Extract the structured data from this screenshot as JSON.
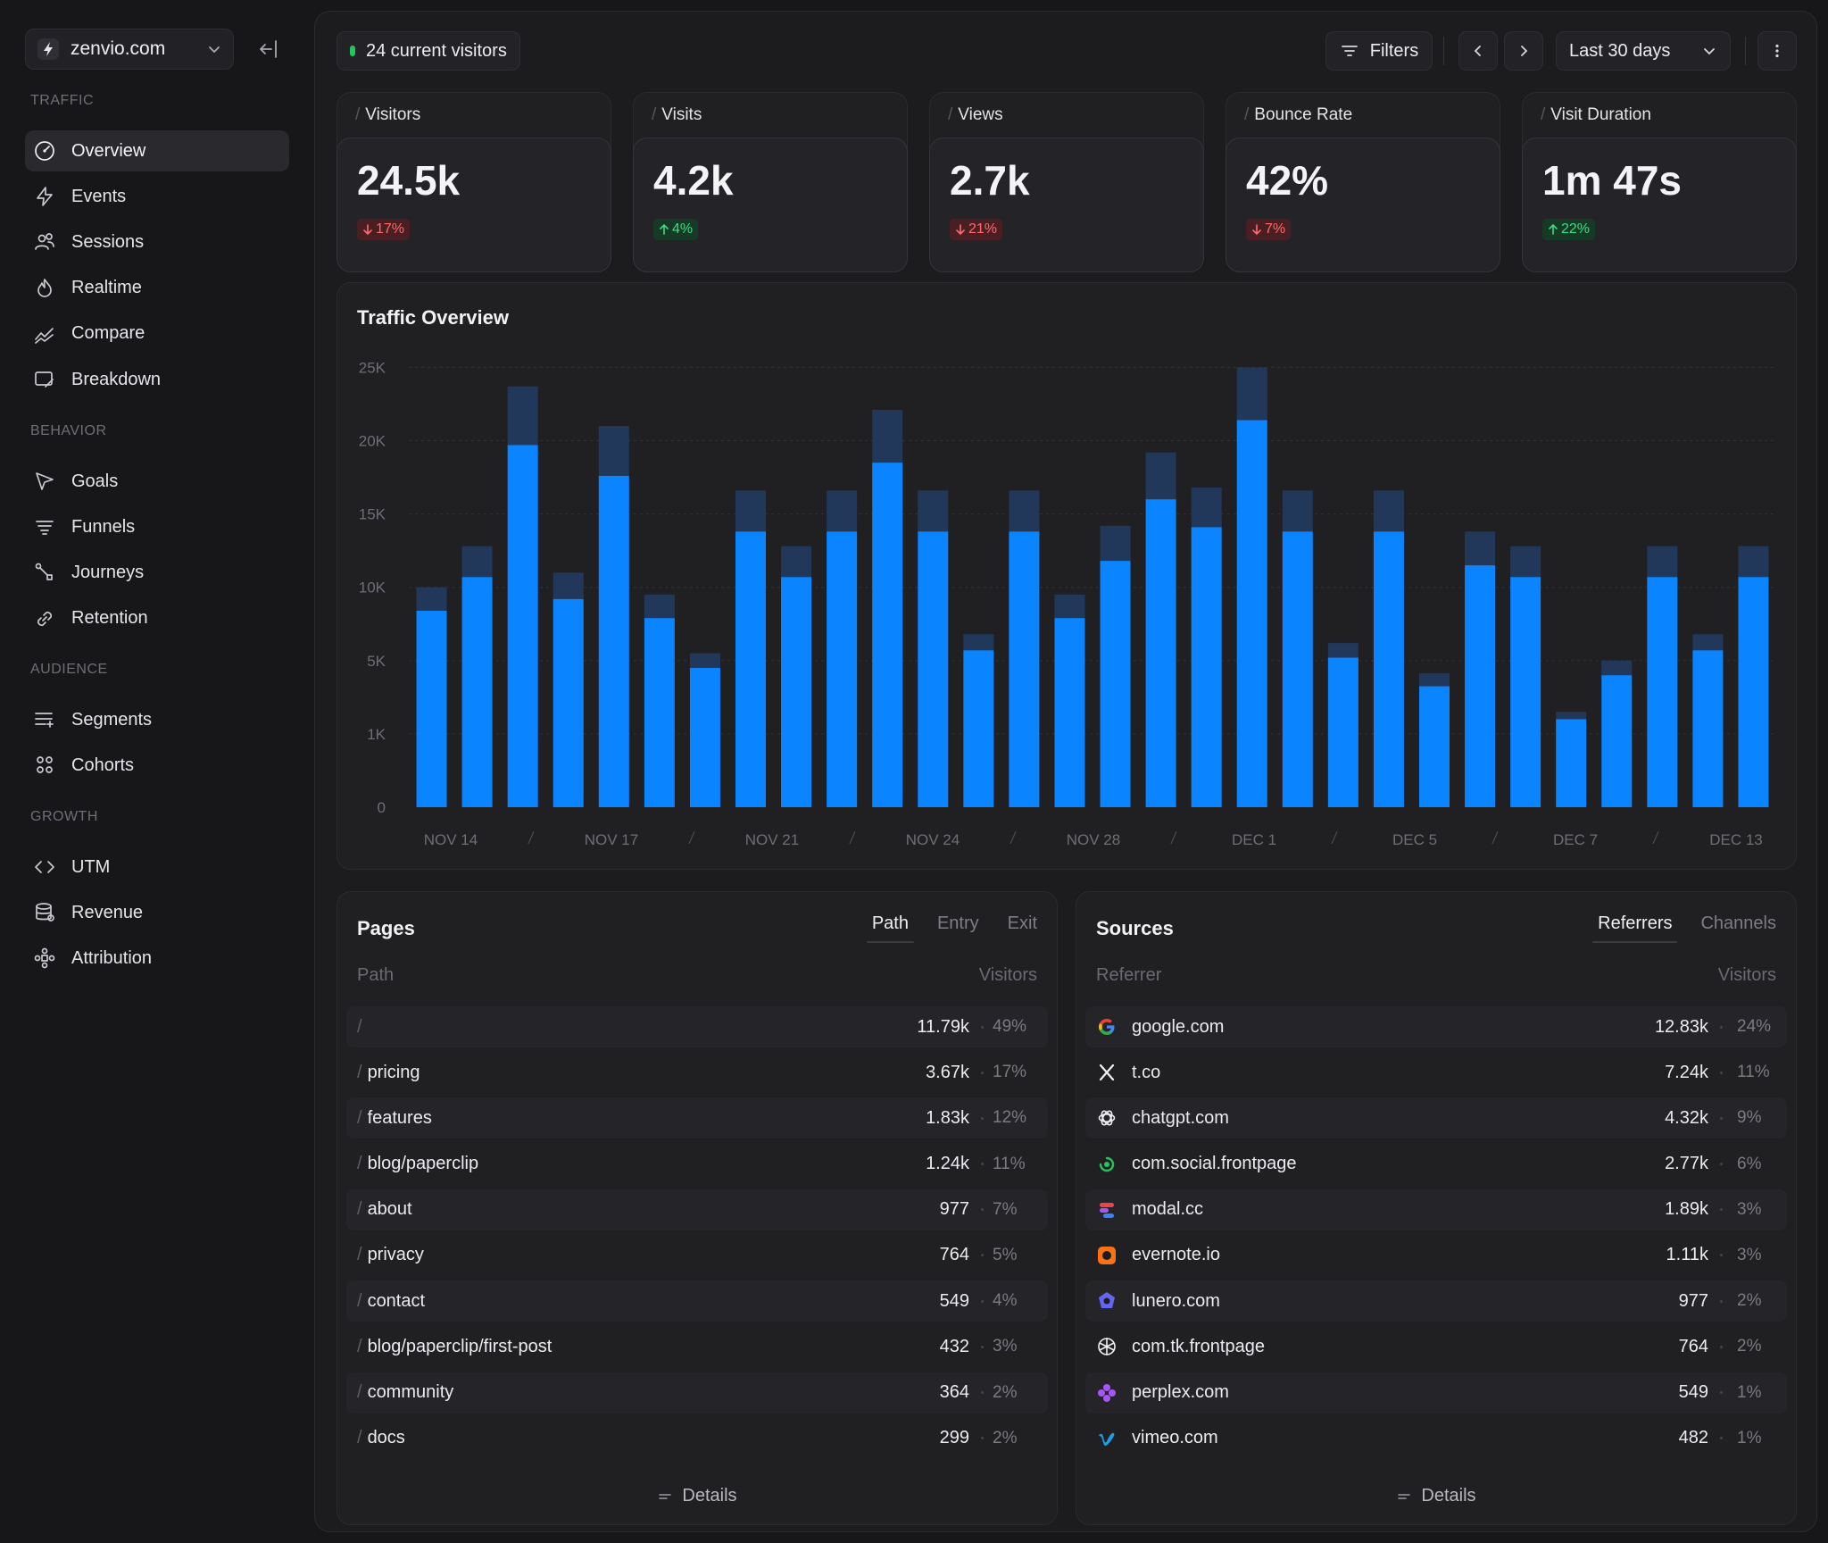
{
  "sidebar": {
    "site_name": "zenvio.com",
    "sections": [
      {
        "title": "TRAFFIC",
        "items": [
          {
            "label": "Overview",
            "icon": "dashboard-icon",
            "active": true
          },
          {
            "label": "Events",
            "icon": "bolt-icon"
          },
          {
            "label": "Sessions",
            "icon": "users-icon"
          },
          {
            "label": "Realtime",
            "icon": "flame-icon"
          },
          {
            "label": "Compare",
            "icon": "trend-icon"
          },
          {
            "label": "Breakdown",
            "icon": "breakdown-icon"
          }
        ]
      },
      {
        "title": "BEHAVIOR",
        "items": [
          {
            "label": "Goals",
            "icon": "cursor-icon"
          },
          {
            "label": "Funnels",
            "icon": "funnel-icon"
          },
          {
            "label": "Journeys",
            "icon": "journey-icon"
          },
          {
            "label": "Retention",
            "icon": "link-icon"
          }
        ]
      },
      {
        "title": "AUDIENCE",
        "items": [
          {
            "label": "Segments",
            "icon": "segments-icon"
          },
          {
            "label": "Cohorts",
            "icon": "cohorts-icon"
          }
        ]
      },
      {
        "title": "GROWTH",
        "items": [
          {
            "label": "UTM",
            "icon": "code-icon"
          },
          {
            "label": "Revenue",
            "icon": "database-icon"
          },
          {
            "label": "Attribution",
            "icon": "attribution-icon"
          }
        ]
      }
    ]
  },
  "header": {
    "current_visitors": "24 current visitors",
    "filters_label": "Filters",
    "range_label": "Last 30 days"
  },
  "stats": [
    {
      "label": "Visitors",
      "value": "24.5k",
      "change": "17%",
      "direction": "down"
    },
    {
      "label": "Visits",
      "value": "4.2k",
      "change": "4%",
      "direction": "up"
    },
    {
      "label": "Views",
      "value": "2.7k",
      "change": "21%",
      "direction": "down"
    },
    {
      "label": "Bounce Rate",
      "value": "42%",
      "change": "7%",
      "direction": "down"
    },
    {
      "label": "Visit Duration",
      "value": "1m 47s",
      "change": "22%",
      "direction": "up"
    }
  ],
  "chart_title": "Traffic Overview",
  "chart_data": {
    "type": "bar",
    "stacked": true,
    "y_ticks": [
      "0",
      "1K",
      "5K",
      "10K",
      "15K",
      "20K",
      "25K"
    ],
    "x_labels": [
      "NOV 14",
      "NOV 17",
      "NOV 21",
      "NOV 24",
      "NOV 28",
      "DEC 1",
      "DEC 5",
      "DEC 7",
      "DEC 13"
    ],
    "colors": {
      "primary": "#0a84ff",
      "secondary": "#22385a"
    },
    "primary_values": [
      8400,
      10700,
      19700,
      9200,
      17600,
      7900,
      4600,
      13800,
      10700,
      13800,
      18500,
      13800,
      5700,
      13800,
      7900,
      11800,
      16000,
      14100,
      21400,
      13800,
      5200,
      13800,
      3600,
      11500,
      10700,
      1800,
      4200,
      10700,
      5700,
      10700
    ],
    "secondary_values": [
      1600,
      2100,
      4000,
      1800,
      3400,
      1600,
      900,
      2800,
      2100,
      2800,
      3600,
      2800,
      1100,
      2800,
      1600,
      2400,
      3200,
      2700,
      4100,
      2800,
      1000,
      2800,
      700,
      2300,
      2100,
      400,
      800,
      2100,
      1100,
      2100
    ]
  },
  "pages": {
    "title": "Pages",
    "tabs": [
      "Path",
      "Entry",
      "Exit"
    ],
    "col_left": "Path",
    "col_right": "Visitors",
    "rows": [
      {
        "path": "",
        "value": "11.79k",
        "pct": "49%"
      },
      {
        "path": "pricing",
        "value": "3.67k",
        "pct": "17%"
      },
      {
        "path": "features",
        "value": "1.83k",
        "pct": "12%"
      },
      {
        "path": "blog/paperclip",
        "value": "1.24k",
        "pct": "11%"
      },
      {
        "path": "about",
        "value": "977",
        "pct": "7%"
      },
      {
        "path": "privacy",
        "value": "764",
        "pct": "5%"
      },
      {
        "path": "contact",
        "value": "549",
        "pct": "4%"
      },
      {
        "path": "blog/paperclip/first-post",
        "value": "432",
        "pct": "3%"
      },
      {
        "path": "community",
        "value": "364",
        "pct": "2%"
      },
      {
        "path": "docs",
        "value": "299",
        "pct": "2%"
      }
    ],
    "details_label": "Details"
  },
  "sources": {
    "title": "Sources",
    "tabs": [
      "Referrers",
      "Channels"
    ],
    "col_left": "Referrer",
    "col_right": "Visitors",
    "rows": [
      {
        "name": "google.com",
        "icon": "google-icon",
        "value": "12.83k",
        "pct": "24%"
      },
      {
        "name": "t.co",
        "icon": "x-icon",
        "value": "7.24k",
        "pct": "11%"
      },
      {
        "name": "chatgpt.com",
        "icon": "openai-icon",
        "value": "4.32k",
        "pct": "9%"
      },
      {
        "name": "com.social.frontpage",
        "icon": "social-icon",
        "value": "2.77k",
        "pct": "6%"
      },
      {
        "name": "modal.cc",
        "icon": "modal-icon",
        "value": "1.89k",
        "pct": "3%"
      },
      {
        "name": "evernote.io",
        "icon": "evernote-icon",
        "value": "1.11k",
        "pct": "3%"
      },
      {
        "name": "lunero.com",
        "icon": "lunero-icon",
        "value": "977",
        "pct": "2%"
      },
      {
        "name": "com.tk.frontpage",
        "icon": "tk-icon",
        "value": "764",
        "pct": "2%"
      },
      {
        "name": "perplex.com",
        "icon": "perplex-icon",
        "value": "549",
        "pct": "1%"
      },
      {
        "name": "vimeo.com",
        "icon": "vimeo-icon",
        "value": "482",
        "pct": "1%"
      }
    ],
    "details_label": "Details"
  }
}
